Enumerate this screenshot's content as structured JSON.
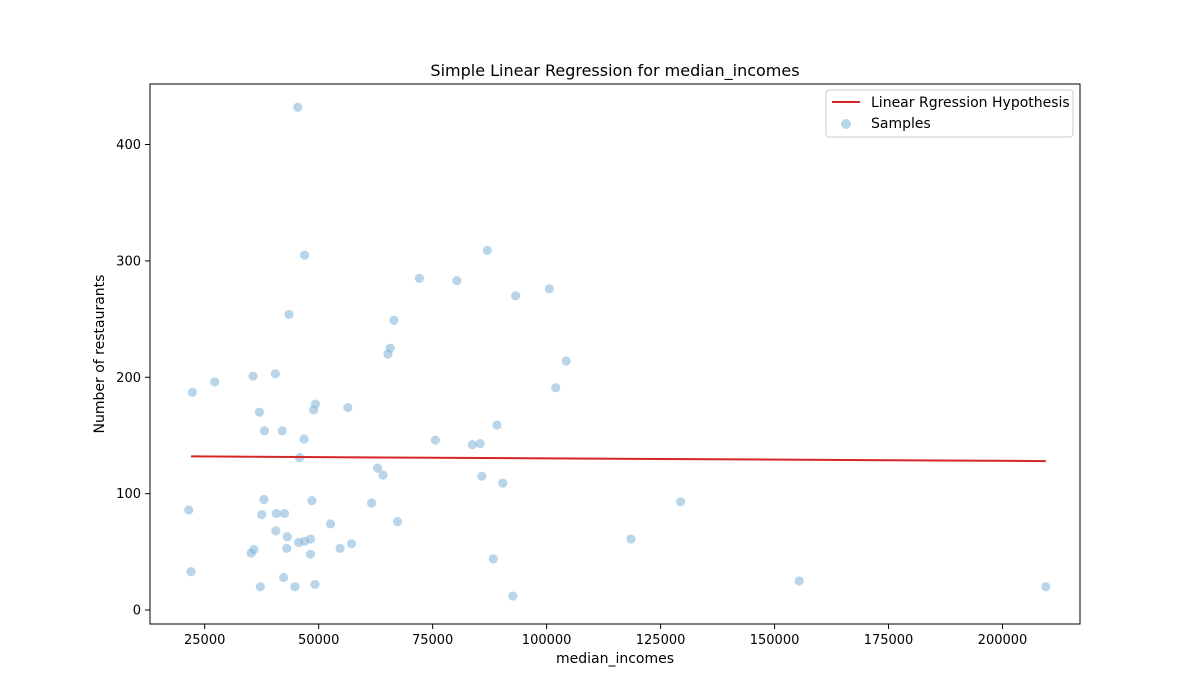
{
  "chart_data": {
    "type": "scatter",
    "title": "Simple Linear Regression for median_incomes",
    "xlabel": "median_incomes",
    "ylabel": "Number of restaurants",
    "xlim": [
      13000,
      217000
    ],
    "ylim": [
      -12,
      452
    ],
    "x_ticks": [
      25000,
      50000,
      75000,
      100000,
      125000,
      150000,
      175000,
      200000
    ],
    "y_ticks": [
      0,
      100,
      200,
      300,
      400
    ],
    "grid": false,
    "legend_position": "top-right",
    "colors": {
      "line": "#d62728",
      "points": "#7fb2d8"
    },
    "series": [
      {
        "name": "Linear Rgression Hypothesis",
        "kind": "line",
        "x": [
          22000,
          209500
        ],
        "y": [
          132,
          128
        ]
      },
      {
        "name": "Samples",
        "kind": "scatter",
        "points": [
          [
            21500,
            86
          ],
          [
            22000,
            33
          ],
          [
            22300,
            187
          ],
          [
            27200,
            196
          ],
          [
            35200,
            49
          ],
          [
            35600,
            201
          ],
          [
            35800,
            52
          ],
          [
            37000,
            170
          ],
          [
            37200,
            20
          ],
          [
            37500,
            82
          ],
          [
            38000,
            95
          ],
          [
            38100,
            154
          ],
          [
            40500,
            203
          ],
          [
            40600,
            68
          ],
          [
            40700,
            83
          ],
          [
            42000,
            154
          ],
          [
            42300,
            28
          ],
          [
            42500,
            83
          ],
          [
            43000,
            53
          ],
          [
            43100,
            63
          ],
          [
            43500,
            254
          ],
          [
            44800,
            20
          ],
          [
            45400,
            432
          ],
          [
            45800,
            131
          ],
          [
            45600,
            58
          ],
          [
            46800,
            147
          ],
          [
            46900,
            305
          ],
          [
            46900,
            59
          ],
          [
            48200,
            61
          ],
          [
            48200,
            48
          ],
          [
            48500,
            94
          ],
          [
            48900,
            172
          ],
          [
            49200,
            22
          ],
          [
            49300,
            177
          ],
          [
            52600,
            74
          ],
          [
            54700,
            53
          ],
          [
            56400,
            174
          ],
          [
            57200,
            57
          ],
          [
            61600,
            92
          ],
          [
            62900,
            122
          ],
          [
            64100,
            116
          ],
          [
            65200,
            220
          ],
          [
            65700,
            225
          ],
          [
            66500,
            249
          ],
          [
            67300,
            76
          ],
          [
            72100,
            285
          ],
          [
            75600,
            146
          ],
          [
            80300,
            283
          ],
          [
            83700,
            142
          ],
          [
            85400,
            143
          ],
          [
            85800,
            115
          ],
          [
            87000,
            309
          ],
          [
            88300,
            44
          ],
          [
            89100,
            159
          ],
          [
            90400,
            109
          ],
          [
            92600,
            12
          ],
          [
            93200,
            270
          ],
          [
            100600,
            276
          ],
          [
            102000,
            191
          ],
          [
            104300,
            214
          ],
          [
            118500,
            61
          ],
          [
            129400,
            93
          ],
          [
            155400,
            25
          ],
          [
            209500,
            20
          ]
        ]
      }
    ]
  }
}
